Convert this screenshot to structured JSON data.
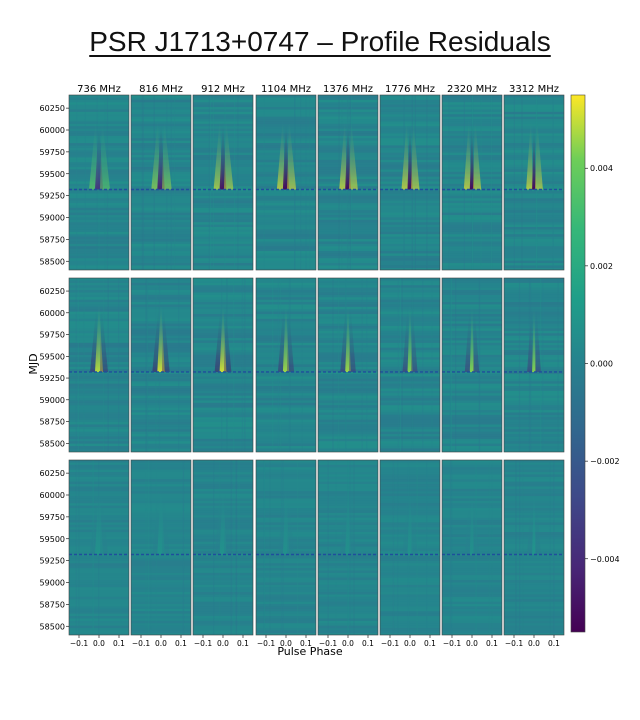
{
  "title": "PSR J1713+0747 – Profile Residuals",
  "chart_data": {
    "type": "heatmap",
    "title": "PSR J1713+0747 – Profile Residuals",
    "xlabel": "Pulse Phase",
    "ylabel": "MJD",
    "frequencies": [
      "736 MHz",
      "816 MHz",
      "912 MHz",
      "1104 MHz",
      "1376 MHz",
      "1776 MHz",
      "2320 MHz",
      "3312 MHz"
    ],
    "rows": 3,
    "x_ticks": [
      -0.1,
      0.0,
      0.1
    ],
    "x_tick_labels": [
      "−0.1",
      "0.0",
      "0.1"
    ],
    "xlim": [
      -0.15,
      0.15
    ],
    "y_ticks": [
      60250,
      60000,
      59750,
      59500,
      59250,
      59000,
      58750,
      58500
    ],
    "ylim": [
      58400,
      60400
    ],
    "event_mjd": 59320,
    "event_line_style": "dashed",
    "colormap": "viridis",
    "colorbar": {
      "range": [
        -0.0055,
        0.0055
      ],
      "ticks": [
        0.004,
        0.002,
        0.0,
        -0.002,
        -0.004
      ],
      "tick_labels": [
        "0.004",
        "0.002",
        "0.000",
        "−0.002",
        "−0.004"
      ]
    },
    "row_feature_strength": [
      1.0,
      0.8,
      0.08
    ],
    "panel_strength": [
      [
        0.7,
        0.85,
        0.95,
        1.0,
        1.0,
        1.0,
        1.0,
        1.0
      ],
      [
        0.9,
        0.95,
        0.95,
        0.85,
        0.85,
        0.8,
        0.8,
        0.8
      ],
      [
        0.1,
        0.1,
        0.1,
        0.08,
        0.08,
        0.08,
        0.08,
        0.12
      ]
    ]
  }
}
